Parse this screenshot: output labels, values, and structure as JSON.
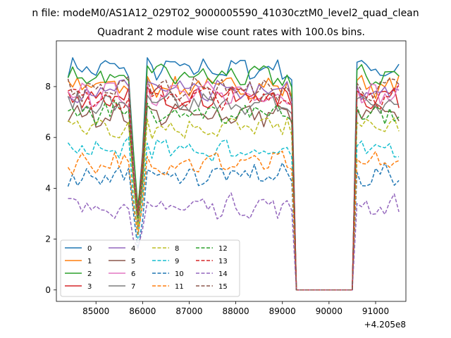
{
  "suptitle": "n file: modeM0/AS1A12_029T02_9000005590_41030cztM0_level2_quad_clean",
  "chart_data": {
    "type": "line",
    "title": "Quadrant 2 module wise count rates with 100.0s bins.",
    "xlabel": "",
    "ylabel": "",
    "x_offset_label": "+4.205e8",
    "xlim": [
      84150,
      91650
    ],
    "ylim": [
      -0.45,
      9.8
    ],
    "xticks": [
      85000,
      86000,
      87000,
      88000,
      89000,
      90000,
      91000
    ],
    "yticks": [
      0,
      2,
      4,
      6,
      8
    ],
    "grid": false,
    "legend": {
      "placement": "lower-left",
      "columns": 4
    },
    "series": [
      {
        "name": "0",
        "color": "#1f77b4",
        "style": "solid",
        "level": 8.7
      },
      {
        "name": "1",
        "color": "#ff7f0e",
        "style": "solid",
        "level": 8.0
      },
      {
        "name": "2",
        "color": "#2ca02c",
        "style": "solid",
        "level": 8.4
      },
      {
        "name": "3",
        "color": "#d62728",
        "style": "solid",
        "level": 7.6
      },
      {
        "name": "4",
        "color": "#9467bd",
        "style": "solid",
        "level": 7.8
      },
      {
        "name": "5",
        "color": "#8c564b",
        "style": "solid",
        "level": 6.9
      },
      {
        "name": "6",
        "color": "#e377c2",
        "style": "solid",
        "level": 7.7
      },
      {
        "name": "7",
        "color": "#7f7f7f",
        "style": "solid",
        "level": 7.3
      },
      {
        "name": "8",
        "color": "#bcbd22",
        "style": "dashed",
        "level": 6.4
      },
      {
        "name": "9",
        "color": "#17becf",
        "style": "dashed",
        "level": 5.5
      },
      {
        "name": "10",
        "color": "#1f77b4",
        "style": "dashed",
        "level": 4.5
      },
      {
        "name": "11",
        "color": "#ff7f0e",
        "style": "dashed",
        "level": 5.0
      },
      {
        "name": "12",
        "color": "#2ca02c",
        "style": "dashed",
        "level": 7.0
      },
      {
        "name": "13",
        "color": "#d62728",
        "style": "dashed",
        "level": 7.6
      },
      {
        "name": "14",
        "color": "#9467bd",
        "style": "dashed",
        "level": 3.3
      },
      {
        "name": "15",
        "color": "#8c564b",
        "style": "dashed",
        "level": 7.9
      }
    ]
  }
}
